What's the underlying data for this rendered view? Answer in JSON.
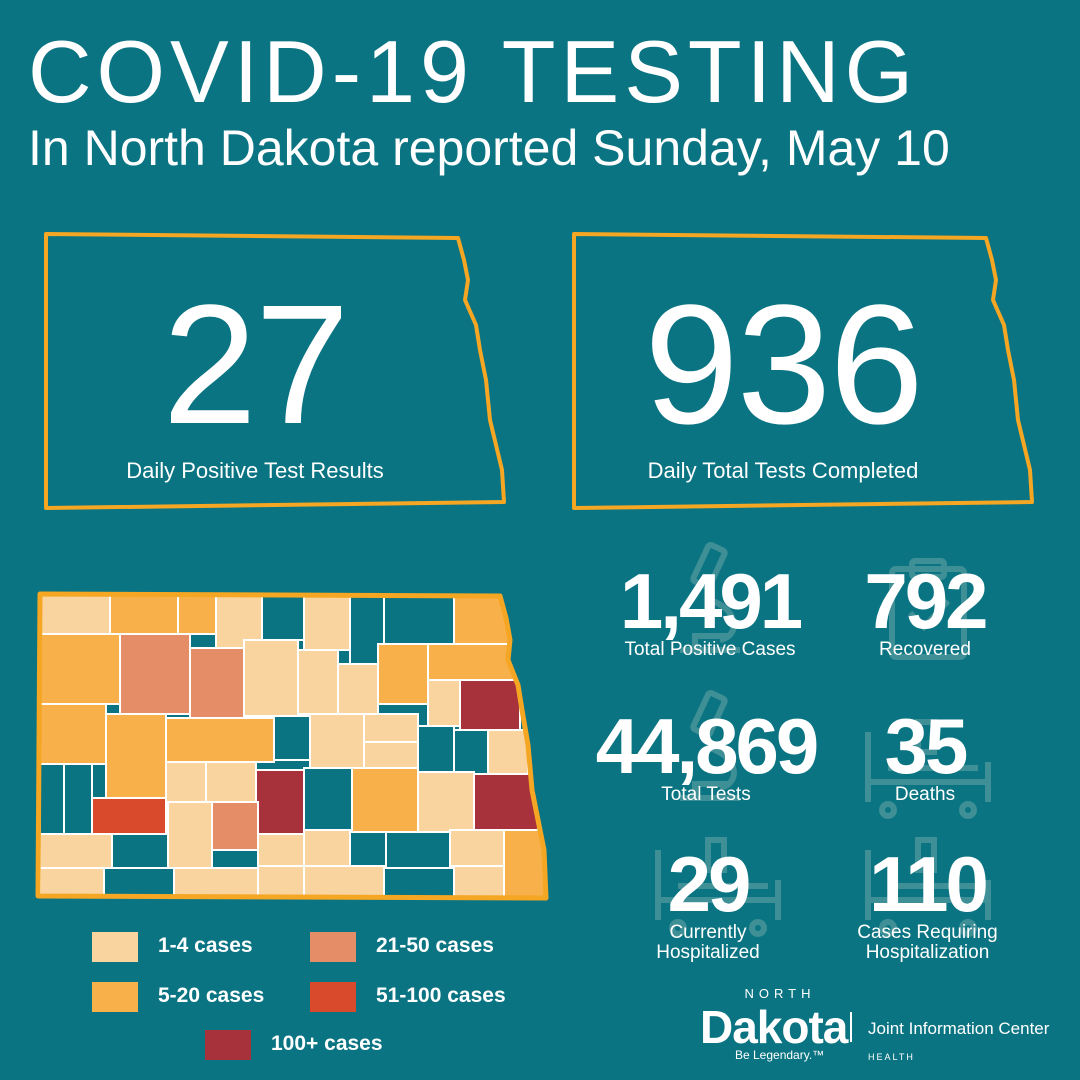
{
  "header": {
    "title": "COVID-19 TESTING",
    "subtitle": "In North Dakota reported Sunday, May 10"
  },
  "daily_cards": [
    {
      "value": "27",
      "label": "Daily Positive Test Results"
    },
    {
      "value": "936",
      "label": "Daily Total Tests Completed"
    }
  ],
  "stats": {
    "total_positive": {
      "value": "1,491",
      "label": "Total Positive Cases",
      "icon": "microscope-icon"
    },
    "recovered": {
      "value": "792",
      "label": "Recovered",
      "icon": "clipboard-check-icon"
    },
    "total_tests": {
      "value": "44,869",
      "label": "Total Tests",
      "icon": "microscope-icon"
    },
    "deaths": {
      "value": "35",
      "label": "Deaths",
      "icon": "hospital-bed-icon"
    },
    "currently_hospitalized": {
      "value": "29",
      "label_line1": "Currently",
      "label_line2": "Hospitalized",
      "icon": "hospital-bed-icon"
    },
    "cases_hospitalization": {
      "value": "110",
      "label_line1": "Cases Requiring",
      "label_line2": "Hospitalization",
      "icon": "hospital-bed-icon"
    }
  },
  "legend": [
    {
      "label": "1-4 cases",
      "color": "#f9d49e"
    },
    {
      "label": "5-20 cases",
      "color": "#f8b04a"
    },
    {
      "label": "21-50 cases",
      "color": "#e58d67"
    },
    {
      "label": "51-100 cases",
      "color": "#d9492b"
    },
    {
      "label": "100+ cases",
      "color": "#a8323c"
    }
  ],
  "colors": {
    "background": "#0b7482",
    "outline": "#f5a623",
    "none": "#0b7482",
    "icon": "#3f8f96"
  },
  "logo": {
    "north": "NORTH",
    "dakota": "Dakota",
    "tagline": "Be Legendary.™",
    "jic": "Joint Information Center",
    "health": "HEALTH"
  }
}
